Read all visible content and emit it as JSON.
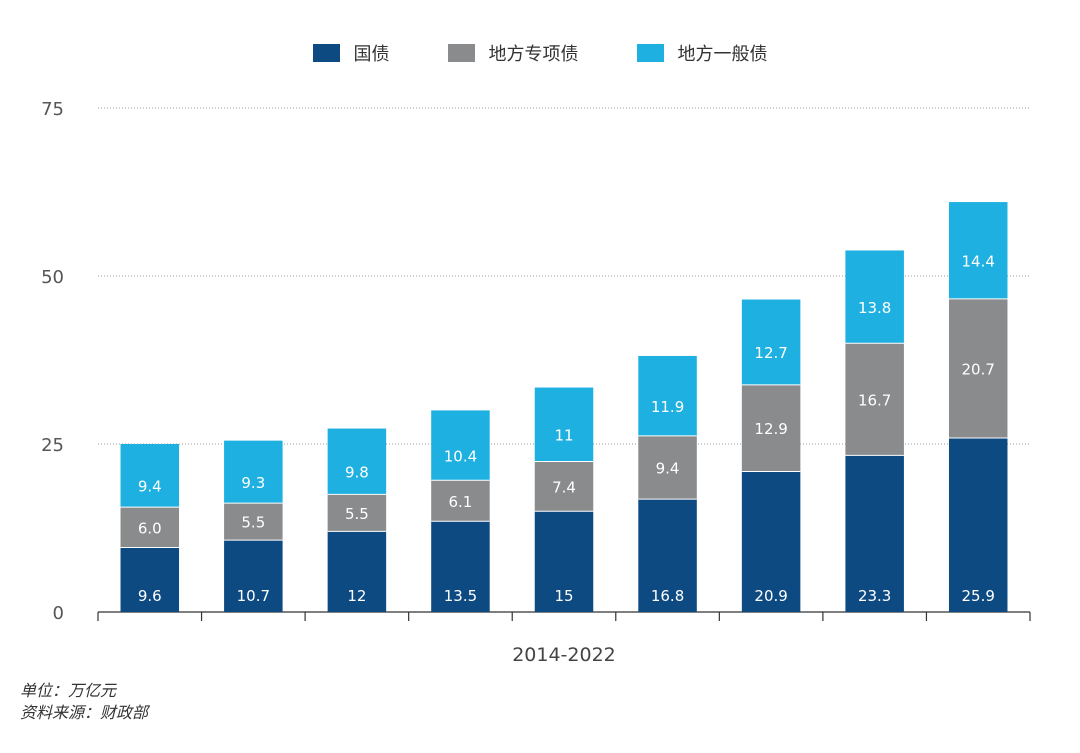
{
  "legend": {
    "items": [
      {
        "label": "国债",
        "color": "#0d4a82"
      },
      {
        "label": "地方专项债",
        "color": "#8a8b8d"
      },
      {
        "label": "地方一般债",
        "color": "#1db0e0"
      }
    ]
  },
  "notes": {
    "unit": "单位：万亿元",
    "source": "资料来源：财政部"
  },
  "chart_data": {
    "type": "bar",
    "stacked": true,
    "xlabel": "2014-2022",
    "ylim": [
      0,
      75
    ],
    "yticks": [
      0,
      25,
      50,
      75
    ],
    "grid": true,
    "legend_position": "top",
    "categories": [
      "",
      "",
      "",
      "",
      "",
      "",
      "",
      "",
      ""
    ],
    "series": [
      {
        "name": "国债",
        "color": "#0d4a82",
        "values": [
          9.6,
          10.7,
          12,
          13.5,
          15,
          16.8,
          20.9,
          23.3,
          25.9
        ],
        "labels": [
          "9.6",
          "10.7",
          "12",
          "13.5",
          "15",
          "16.8",
          "20.9",
          "23.3",
          "25.9"
        ]
      },
      {
        "name": "地方专项债",
        "color": "#8a8b8d",
        "values": [
          6.0,
          5.5,
          5.5,
          6.1,
          7.4,
          9.4,
          12.9,
          16.7,
          20.7
        ],
        "labels": [
          "6.0",
          "5.5",
          "5.5",
          "6.1",
          "7.4",
          "9.4",
          "12.9",
          "16.7",
          "20.7"
        ]
      },
      {
        "name": "地方一般债",
        "color": "#1db0e0",
        "values": [
          9.4,
          9.3,
          9.8,
          10.4,
          11,
          11.9,
          12.7,
          13.8,
          14.4
        ],
        "labels": [
          "9.4",
          "9.3",
          "9.8",
          "10.4",
          "11",
          "11.9",
          "12.7",
          "13.8",
          "14.4"
        ]
      }
    ]
  }
}
